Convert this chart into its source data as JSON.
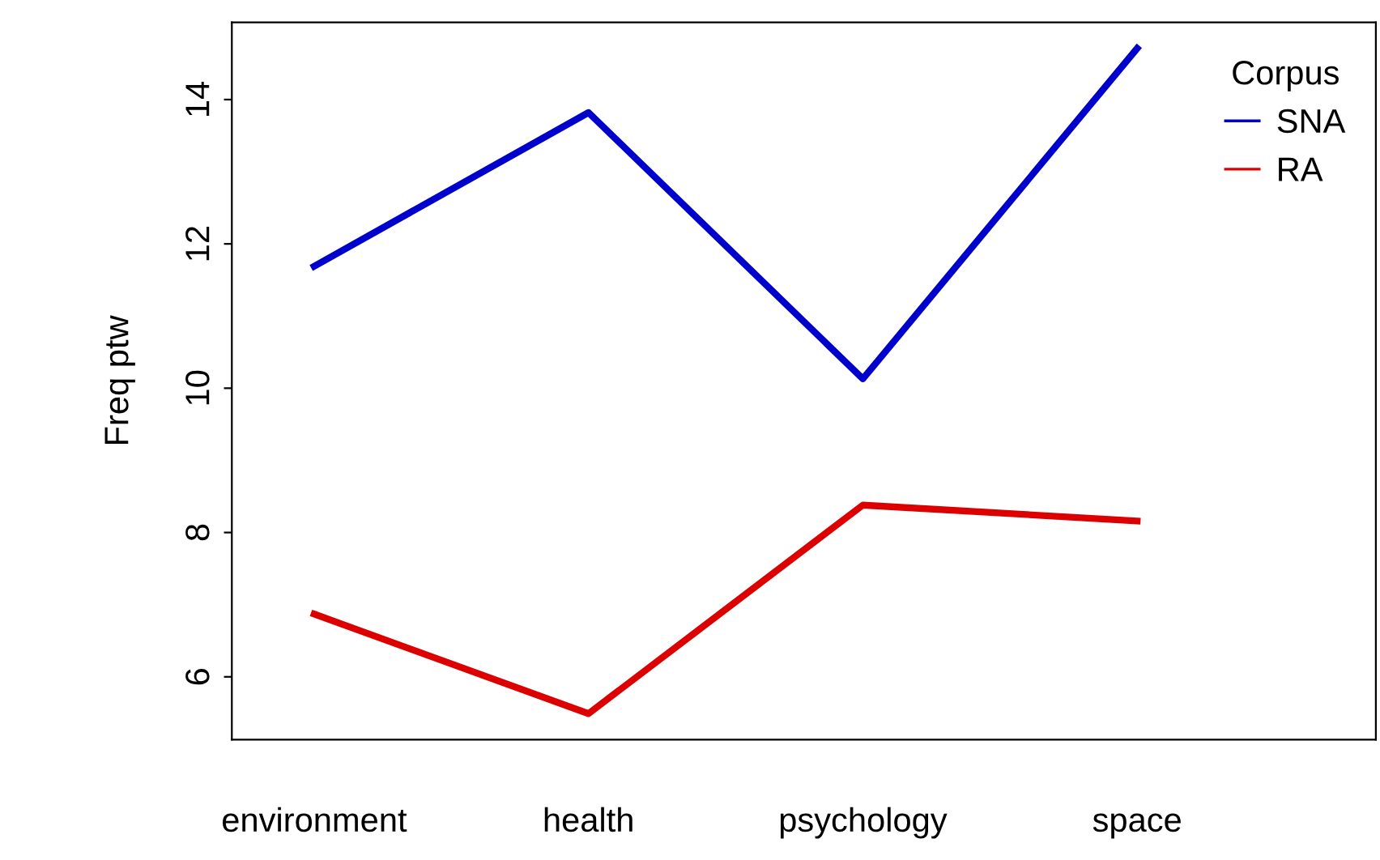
{
  "chart_data": {
    "type": "line",
    "ylabel": "Freq ptw",
    "legend_title": "Corpus",
    "categories": [
      "environment",
      "health",
      "psychology",
      "space"
    ],
    "series": [
      {
        "name": "SNA",
        "color": "#0000cc",
        "values": [
          11.69,
          13.82,
          10.13,
          14.71
        ]
      },
      {
        "name": "RA",
        "color": "#dd0000",
        "values": [
          6.87,
          5.49,
          8.38,
          8.16
        ]
      }
    ],
    "ylim": [
      5.13,
      15.07
    ],
    "yticks": [
      6,
      8,
      10,
      12,
      14
    ],
    "grid": false,
    "legend": "top right",
    "marker": "none",
    "line_style": "solid"
  }
}
